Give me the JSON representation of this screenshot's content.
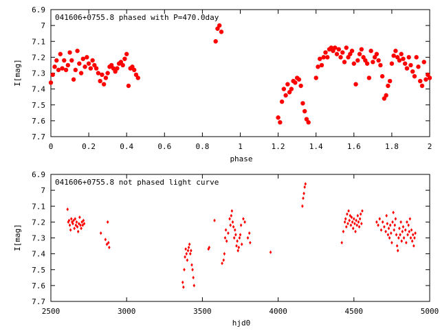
{
  "colors": {
    "points": "#ff0000",
    "axes": "#000000",
    "background": "#ffffff"
  },
  "chart_data": [
    {
      "type": "scatter",
      "title": "041606+0755.8 phased with P=470.0day",
      "xlabel": "phase",
      "ylabel": "I[mag]",
      "xlim": [
        0,
        2
      ],
      "ylim": [
        7.7,
        6.9
      ],
      "y_inverted": true,
      "grid": false,
      "xticks": [
        "0",
        "0.2",
        "0.4",
        "0.6",
        "0.8",
        "1",
        "1.2",
        "1.4",
        "1.6",
        "1.8",
        "2"
      ],
      "yticks": [
        "6.9",
        "7",
        "7.1",
        "7.2",
        "7.3",
        "7.4",
        "7.5",
        "7.6",
        "7.7"
      ],
      "marker": "filled-circle-large",
      "points": [
        [
          0.0,
          7.36
        ],
        [
          0.01,
          7.31
        ],
        [
          0.02,
          7.26
        ],
        [
          0.03,
          7.22
        ],
        [
          0.04,
          7.28
        ],
        [
          0.05,
          7.18
        ],
        [
          0.06,
          7.27
        ],
        [
          0.07,
          7.22
        ],
        [
          0.08,
          7.28
        ],
        [
          0.09,
          7.25
        ],
        [
          0.1,
          7.17
        ],
        [
          0.11,
          7.22
        ],
        [
          0.12,
          7.34
        ],
        [
          0.13,
          7.28
        ],
        [
          0.14,
          7.16
        ],
        [
          0.15,
          7.24
        ],
        [
          0.16,
          7.3
        ],
        [
          0.17,
          7.21
        ],
        [
          0.18,
          7.26
        ],
        [
          0.19,
          7.2
        ],
        [
          0.2,
          7.24
        ],
        [
          0.21,
          7.27
        ],
        [
          0.22,
          7.22
        ],
        [
          0.23,
          7.25
        ],
        [
          0.24,
          7.27
        ],
        [
          0.25,
          7.3
        ],
        [
          0.26,
          7.35
        ],
        [
          0.27,
          7.31
        ],
        [
          0.28,
          7.37
        ],
        [
          0.29,
          7.33
        ],
        [
          0.3,
          7.3
        ],
        [
          0.31,
          7.26
        ],
        [
          0.32,
          7.25
        ],
        [
          0.33,
          7.27
        ],
        [
          0.34,
          7.29
        ],
        [
          0.35,
          7.27
        ],
        [
          0.36,
          7.24
        ],
        [
          0.37,
          7.23
        ],
        [
          0.38,
          7.25
        ],
        [
          0.39,
          7.21
        ],
        [
          0.4,
          7.18
        ],
        [
          0.41,
          7.38
        ],
        [
          0.42,
          7.27
        ],
        [
          0.43,
          7.26
        ],
        [
          0.44,
          7.28
        ],
        [
          0.45,
          7.31
        ],
        [
          0.46,
          7.33
        ],
        [
          0.87,
          7.1
        ],
        [
          0.88,
          7.02
        ],
        [
          0.89,
          7.0
        ],
        [
          0.9,
          7.04
        ],
        [
          1.2,
          7.58
        ],
        [
          1.21,
          7.61
        ],
        [
          1.22,
          7.48
        ],
        [
          1.23,
          7.4
        ],
        [
          1.24,
          7.44
        ],
        [
          1.25,
          7.37
        ],
        [
          1.26,
          7.42
        ],
        [
          1.27,
          7.4
        ],
        [
          1.28,
          7.35
        ],
        [
          1.29,
          7.36
        ],
        [
          1.3,
          7.33
        ],
        [
          1.31,
          7.34
        ],
        [
          1.32,
          7.38
        ],
        [
          1.33,
          7.49
        ],
        [
          1.34,
          7.54
        ],
        [
          1.35,
          7.59
        ],
        [
          1.36,
          7.61
        ],
        [
          1.4,
          7.33
        ],
        [
          1.41,
          7.26
        ],
        [
          1.42,
          7.21
        ],
        [
          1.43,
          7.25
        ],
        [
          1.44,
          7.2
        ],
        [
          1.45,
          7.17
        ],
        [
          1.46,
          7.2
        ],
        [
          1.47,
          7.15
        ],
        [
          1.48,
          7.14
        ],
        [
          1.49,
          7.16
        ],
        [
          1.5,
          7.14
        ],
        [
          1.51,
          7.18
        ],
        [
          1.52,
          7.15
        ],
        [
          1.53,
          7.2
        ],
        [
          1.54,
          7.17
        ],
        [
          1.55,
          7.23
        ],
        [
          1.56,
          7.14
        ],
        [
          1.57,
          7.2
        ],
        [
          1.58,
          7.18
        ],
        [
          1.59,
          7.16
        ],
        [
          1.6,
          7.24
        ],
        [
          1.61,
          7.37
        ],
        [
          1.62,
          7.22
        ],
        [
          1.63,
          7.18
        ],
        [
          1.64,
          7.15
        ],
        [
          1.65,
          7.2
        ],
        [
          1.66,
          7.22
        ],
        [
          1.67,
          7.24
        ],
        [
          1.68,
          7.33
        ],
        [
          1.69,
          7.16
        ],
        [
          1.7,
          7.23
        ],
        [
          1.71,
          7.2
        ],
        [
          1.72,
          7.18
        ],
        [
          1.73,
          7.22
        ],
        [
          1.74,
          7.25
        ],
        [
          1.75,
          7.32
        ],
        [
          1.76,
          7.46
        ],
        [
          1.77,
          7.44
        ],
        [
          1.78,
          7.38
        ],
        [
          1.79,
          7.35
        ],
        [
          1.8,
          7.24
        ],
        [
          1.81,
          7.19
        ],
        [
          1.82,
          7.16
        ],
        [
          1.83,
          7.2
        ],
        [
          1.84,
          7.22
        ],
        [
          1.85,
          7.18
        ],
        [
          1.86,
          7.21
        ],
        [
          1.87,
          7.24
        ],
        [
          1.88,
          7.27
        ],
        [
          1.89,
          7.2
        ],
        [
          1.9,
          7.25
        ],
        [
          1.91,
          7.29
        ],
        [
          1.92,
          7.32
        ],
        [
          1.93,
          7.2
        ],
        [
          1.94,
          7.26
        ],
        [
          1.95,
          7.35
        ],
        [
          1.96,
          7.38
        ],
        [
          1.97,
          7.23
        ],
        [
          1.98,
          7.34
        ],
        [
          1.99,
          7.31
        ],
        [
          2.0,
          7.33
        ]
      ]
    },
    {
      "type": "scatter",
      "title": "041606+0755.8 not phased light curve",
      "xlabel": "hjd0",
      "ylabel": "I[mag]",
      "xlim": [
        2500,
        5000
      ],
      "ylim": [
        7.7,
        6.9
      ],
      "y_inverted": true,
      "grid": false,
      "xticks": [
        "2500",
        "3000",
        "3500",
        "4000",
        "4500",
        "5000"
      ],
      "yticks": [
        "6.9",
        "7",
        "7.1",
        "7.2",
        "7.3",
        "7.4",
        "7.5",
        "7.6",
        "7.7"
      ],
      "marker": "small-diamond",
      "points": [
        [
          2610,
          7.12
        ],
        [
          2615,
          7.2
        ],
        [
          2620,
          7.19
        ],
        [
          2625,
          7.22
        ],
        [
          2630,
          7.25
        ],
        [
          2635,
          7.18
        ],
        [
          2640,
          7.2
        ],
        [
          2645,
          7.21
        ],
        [
          2650,
          7.19
        ],
        [
          2655,
          7.24
        ],
        [
          2660,
          7.18
        ],
        [
          2665,
          7.22
        ],
        [
          2670,
          7.2
        ],
        [
          2675,
          7.23
        ],
        [
          2680,
          7.26
        ],
        [
          2685,
          7.21
        ],
        [
          2690,
          7.17
        ],
        [
          2695,
          7.22
        ],
        [
          2700,
          7.24
        ],
        [
          2705,
          7.2
        ],
        [
          2710,
          7.22
        ],
        [
          2715,
          7.19
        ],
        [
          2720,
          7.21
        ],
        [
          2830,
          7.27
        ],
        [
          2860,
          7.31
        ],
        [
          2870,
          7.34
        ],
        [
          2875,
          7.2
        ],
        [
          2880,
          7.33
        ],
        [
          2885,
          7.36
        ],
        [
          3370,
          7.58
        ],
        [
          3375,
          7.61
        ],
        [
          3380,
          7.5
        ],
        [
          3385,
          7.42
        ],
        [
          3390,
          7.37
        ],
        [
          3395,
          7.4
        ],
        [
          3400,
          7.44
        ],
        [
          3405,
          7.38
        ],
        [
          3410,
          7.36
        ],
        [
          3415,
          7.34
        ],
        [
          3420,
          7.4
        ],
        [
          3425,
          7.38
        ],
        [
          3430,
          7.47
        ],
        [
          3435,
          7.5
        ],
        [
          3440,
          7.55
        ],
        [
          3445,
          7.6
        ],
        [
          3540,
          7.37
        ],
        [
          3545,
          7.36
        ],
        [
          3580,
          7.19
        ],
        [
          3630,
          7.46
        ],
        [
          3640,
          7.44
        ],
        [
          3645,
          7.4
        ],
        [
          3650,
          7.3
        ],
        [
          3655,
          7.25
        ],
        [
          3660,
          7.32
        ],
        [
          3670,
          7.27
        ],
        [
          3680,
          7.18
        ],
        [
          3685,
          7.22
        ],
        [
          3690,
          7.16
        ],
        [
          3695,
          7.13
        ],
        [
          3700,
          7.2
        ],
        [
          3705,
          7.23
        ],
        [
          3710,
          7.3
        ],
        [
          3715,
          7.25
        ],
        [
          3720,
          7.28
        ],
        [
          3725,
          7.35
        ],
        [
          3730,
          7.32
        ],
        [
          3735,
          7.38
        ],
        [
          3740,
          7.36
        ],
        [
          3745,
          7.3
        ],
        [
          3750,
          7.28
        ],
        [
          3755,
          7.22
        ],
        [
          3760,
          7.34
        ],
        [
          3770,
          7.18
        ],
        [
          3780,
          7.2
        ],
        [
          3800,
          7.3
        ],
        [
          3810,
          7.27
        ],
        [
          3815,
          7.33
        ],
        [
          3950,
          7.39
        ],
        [
          4160,
          7.1
        ],
        [
          4165,
          7.05
        ],
        [
          4170,
          7.02
        ],
        [
          4175,
          6.98
        ],
        [
          4180,
          6.96
        ],
        [
          4420,
          7.33
        ],
        [
          4430,
          7.26
        ],
        [
          4440,
          7.2
        ],
        [
          4445,
          7.18
        ],
        [
          4450,
          7.23
        ],
        [
          4455,
          7.15
        ],
        [
          4460,
          7.21
        ],
        [
          4465,
          7.13
        ],
        [
          4470,
          7.19
        ],
        [
          4475,
          7.16
        ],
        [
          4480,
          7.22
        ],
        [
          4485,
          7.17
        ],
        [
          4490,
          7.2
        ],
        [
          4495,
          7.24
        ],
        [
          4500,
          7.18
        ],
        [
          4505,
          7.21
        ],
        [
          4510,
          7.26
        ],
        [
          4515,
          7.19
        ],
        [
          4520,
          7.22
        ],
        [
          4525,
          7.16
        ],
        [
          4530,
          7.2
        ],
        [
          4535,
          7.23
        ],
        [
          4540,
          7.18
        ],
        [
          4545,
          7.15
        ],
        [
          4550,
          7.21
        ],
        [
          4555,
          7.13
        ],
        [
          4650,
          7.2
        ],
        [
          4660,
          7.22
        ],
        [
          4670,
          7.18
        ],
        [
          4680,
          7.25
        ],
        [
          4690,
          7.2
        ],
        [
          4700,
          7.23
        ],
        [
          4710,
          7.26
        ],
        [
          4715,
          7.16
        ],
        [
          4720,
          7.21
        ],
        [
          4725,
          7.28
        ],
        [
          4730,
          7.24
        ],
        [
          4735,
          7.3
        ],
        [
          4740,
          7.22
        ],
        [
          4745,
          7.27
        ],
        [
          4750,
          7.33
        ],
        [
          4755,
          7.2
        ],
        [
          4760,
          7.14
        ],
        [
          4765,
          7.25
        ],
        [
          4770,
          7.22
        ],
        [
          4775,
          7.18
        ],
        [
          4780,
          7.28
        ],
        [
          4785,
          7.35
        ],
        [
          4790,
          7.38
        ],
        [
          4795,
          7.3
        ],
        [
          4800,
          7.24
        ],
        [
          4805,
          7.28
        ],
        [
          4810,
          7.2
        ],
        [
          4815,
          7.32
        ],
        [
          4820,
          7.26
        ],
        [
          4825,
          7.23
        ],
        [
          4830,
          7.3
        ],
        [
          4840,
          7.25
        ],
        [
          4845,
          7.33
        ],
        [
          4850,
          7.2
        ],
        [
          4855,
          7.28
        ],
        [
          4860,
          7.22
        ],
        [
          4865,
          7.26
        ],
        [
          4870,
          7.18
        ],
        [
          4875,
          7.3
        ],
        [
          4880,
          7.25
        ],
        [
          4885,
          7.32
        ],
        [
          4890,
          7.28
        ],
        [
          4895,
          7.35
        ],
        [
          4900,
          7.3
        ],
        [
          4905,
          7.27
        ]
      ]
    }
  ]
}
